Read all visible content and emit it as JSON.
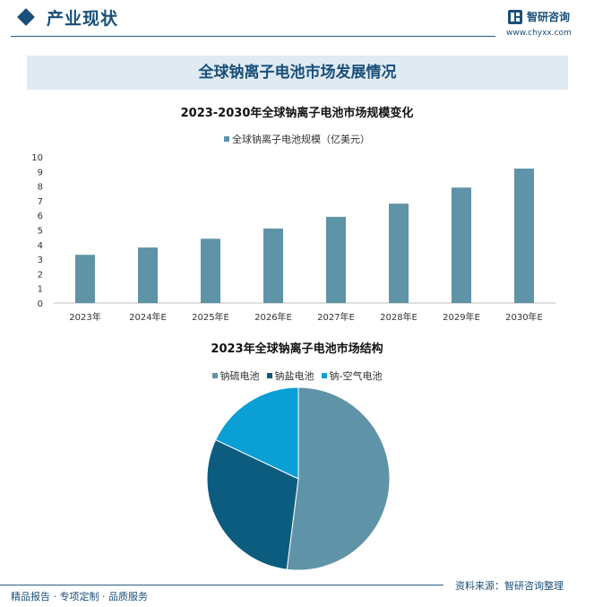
{
  "header": {
    "section_title": "产业现状",
    "brand_name": "智研咨询",
    "brand_url": "www.chyxx.com"
  },
  "banner": {
    "title": "全球钠离子电池市场发展情况"
  },
  "chart_data": [
    {
      "type": "bar",
      "title": "2023-2030年全球钠离子电池市场规模变化",
      "categories": [
        "2023年",
        "2024年E",
        "2025年E",
        "2026年E",
        "2027年E",
        "2028年E",
        "2029年E",
        "2030年E"
      ],
      "series": [
        {
          "name": "全球钠离子电池规模（亿美元）",
          "values": [
            3.3,
            3.8,
            4.4,
            5.1,
            5.9,
            6.8,
            7.9,
            9.2
          ],
          "color": "#5f93a8"
        }
      ],
      "yticks": [
        "0",
        "1",
        "2",
        "3",
        "4",
        "5",
        "6",
        "7",
        "8",
        "9",
        "10"
      ],
      "ylim": [
        0,
        10
      ],
      "grid": false,
      "legend": "top"
    },
    {
      "type": "pie",
      "title": "2023年全球钠离子电池市场结构",
      "labels": [
        "钠硫电池",
        "钠盐电池",
        "钠-空气电池"
      ],
      "values": [
        52,
        30,
        18
      ],
      "colors": [
        "#5f93a8",
        "#0b5c7e",
        "#0aa0d6"
      ],
      "legend": "top"
    }
  ],
  "footer": {
    "left_text": "精品报告 · 专项定制 · 品质服务",
    "source_text": "资料来源：智研咨询整理"
  }
}
